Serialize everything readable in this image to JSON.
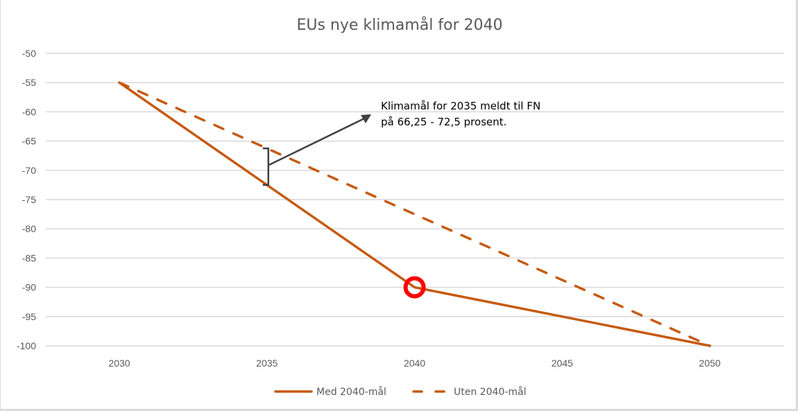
{
  "chart_data": {
    "type": "line",
    "title": "EUs nye klimamål for 2040",
    "xlabel": "",
    "ylabel": "",
    "x": [
      2030,
      2035,
      2040,
      2045,
      2050
    ],
    "x_tick_labels": [
      "2030",
      "2035",
      "2040",
      "2045",
      "2050"
    ],
    "xlim": [
      2027.5,
      2052.5
    ],
    "ylim": [
      -100,
      -50
    ],
    "y_ticks": [
      -50,
      -55,
      -60,
      -65,
      -70,
      -75,
      -80,
      -85,
      -90,
      -95,
      -100
    ],
    "y_tick_labels": [
      "-50",
      "-55",
      "-60",
      "-65",
      "-70",
      "-75",
      "-80",
      "-85",
      "-90",
      "-95",
      "-100"
    ],
    "grid": "horizontal",
    "legend_position": "bottom",
    "series": [
      {
        "name": "Med 2040-mål",
        "style": "solid",
        "color": "#c55a11",
        "values": [
          -55,
          -72.5,
          -90,
          -95,
          -100
        ]
      },
      {
        "name": "Uten 2040-mål",
        "style": "dashed",
        "color": "#c55a11",
        "values": [
          -55,
          -66.25,
          -77.5,
          -88.75,
          -100
        ]
      }
    ],
    "annotations": [
      {
        "type": "range-bracket-with-arrow",
        "x": 2035,
        "y_range": [
          -66.25,
          -72.5
        ],
        "text_lines": [
          "Klimamål for 2035 meldt til FN",
          "på 66,25 - 72,5 prosent."
        ],
        "color": "#404040"
      },
      {
        "type": "circle-marker",
        "x": 2040,
        "y": -90,
        "color": "#ff0000"
      }
    ]
  }
}
